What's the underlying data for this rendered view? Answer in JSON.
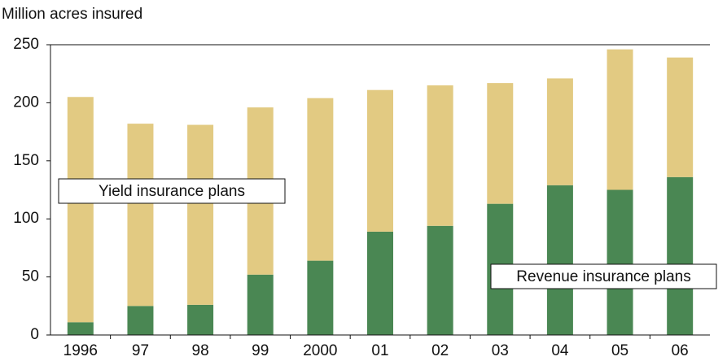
{
  "chart_data": {
    "type": "stacked_bar",
    "y_label": "Million acres insured",
    "categories": [
      "1996",
      "97",
      "98",
      "99",
      "2000",
      "01",
      "02",
      "03",
      "04",
      "05",
      "06"
    ],
    "series": [
      {
        "name": "Revenue insurance plans",
        "color": "#4a8753",
        "values": [
          11,
          25,
          26,
          52,
          64,
          89,
          94,
          113,
          129,
          125,
          136
        ]
      },
      {
        "name": "Yield insurance plans",
        "color": "#e2ca82",
        "values": [
          194,
          157,
          155,
          144,
          140,
          122,
          121,
          104,
          92,
          121,
          103
        ]
      }
    ],
    "ylim": [
      0,
      250
    ],
    "yticks": [
      0,
      50,
      100,
      150,
      200,
      250
    ]
  }
}
